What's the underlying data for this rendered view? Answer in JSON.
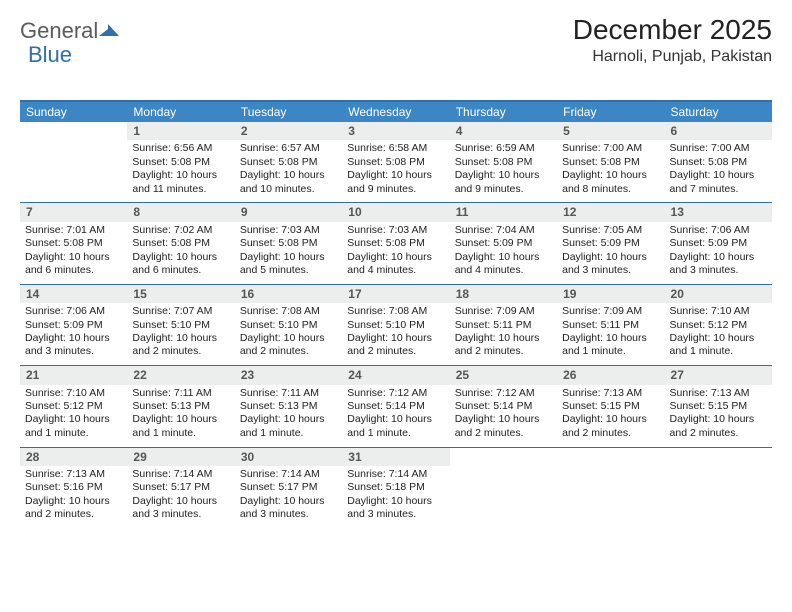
{
  "brand": {
    "part1": "General",
    "part2": "Blue"
  },
  "title": "December 2025",
  "location": "Harnoli, Punjab, Pakistan",
  "colors": {
    "header_bg": "#3d86c6",
    "rule": "#2f6fab",
    "daynum_bg": "#eceded",
    "text": "#222222",
    "logo_gray": "#5c5c5c",
    "logo_blue": "#2f6fab"
  },
  "daysOfWeek": [
    "Sunday",
    "Monday",
    "Tuesday",
    "Wednesday",
    "Thursday",
    "Friday",
    "Saturday"
  ],
  "weeks": [
    [
      {
        "n": "",
        "sr": "",
        "ss": "",
        "dl": ""
      },
      {
        "n": "1",
        "sr": "Sunrise: 6:56 AM",
        "ss": "Sunset: 5:08 PM",
        "dl": "Daylight: 10 hours and 11 minutes."
      },
      {
        "n": "2",
        "sr": "Sunrise: 6:57 AM",
        "ss": "Sunset: 5:08 PM",
        "dl": "Daylight: 10 hours and 10 minutes."
      },
      {
        "n": "3",
        "sr": "Sunrise: 6:58 AM",
        "ss": "Sunset: 5:08 PM",
        "dl": "Daylight: 10 hours and 9 minutes."
      },
      {
        "n": "4",
        "sr": "Sunrise: 6:59 AM",
        "ss": "Sunset: 5:08 PM",
        "dl": "Daylight: 10 hours and 9 minutes."
      },
      {
        "n": "5",
        "sr": "Sunrise: 7:00 AM",
        "ss": "Sunset: 5:08 PM",
        "dl": "Daylight: 10 hours and 8 minutes."
      },
      {
        "n": "6",
        "sr": "Sunrise: 7:00 AM",
        "ss": "Sunset: 5:08 PM",
        "dl": "Daylight: 10 hours and 7 minutes."
      }
    ],
    [
      {
        "n": "7",
        "sr": "Sunrise: 7:01 AM",
        "ss": "Sunset: 5:08 PM",
        "dl": "Daylight: 10 hours and 6 minutes."
      },
      {
        "n": "8",
        "sr": "Sunrise: 7:02 AM",
        "ss": "Sunset: 5:08 PM",
        "dl": "Daylight: 10 hours and 6 minutes."
      },
      {
        "n": "9",
        "sr": "Sunrise: 7:03 AM",
        "ss": "Sunset: 5:08 PM",
        "dl": "Daylight: 10 hours and 5 minutes."
      },
      {
        "n": "10",
        "sr": "Sunrise: 7:03 AM",
        "ss": "Sunset: 5:08 PM",
        "dl": "Daylight: 10 hours and 4 minutes."
      },
      {
        "n": "11",
        "sr": "Sunrise: 7:04 AM",
        "ss": "Sunset: 5:09 PM",
        "dl": "Daylight: 10 hours and 4 minutes."
      },
      {
        "n": "12",
        "sr": "Sunrise: 7:05 AM",
        "ss": "Sunset: 5:09 PM",
        "dl": "Daylight: 10 hours and 3 minutes."
      },
      {
        "n": "13",
        "sr": "Sunrise: 7:06 AM",
        "ss": "Sunset: 5:09 PM",
        "dl": "Daylight: 10 hours and 3 minutes."
      }
    ],
    [
      {
        "n": "14",
        "sr": "Sunrise: 7:06 AM",
        "ss": "Sunset: 5:09 PM",
        "dl": "Daylight: 10 hours and 3 minutes."
      },
      {
        "n": "15",
        "sr": "Sunrise: 7:07 AM",
        "ss": "Sunset: 5:10 PM",
        "dl": "Daylight: 10 hours and 2 minutes."
      },
      {
        "n": "16",
        "sr": "Sunrise: 7:08 AM",
        "ss": "Sunset: 5:10 PM",
        "dl": "Daylight: 10 hours and 2 minutes."
      },
      {
        "n": "17",
        "sr": "Sunrise: 7:08 AM",
        "ss": "Sunset: 5:10 PM",
        "dl": "Daylight: 10 hours and 2 minutes."
      },
      {
        "n": "18",
        "sr": "Sunrise: 7:09 AM",
        "ss": "Sunset: 5:11 PM",
        "dl": "Daylight: 10 hours and 2 minutes."
      },
      {
        "n": "19",
        "sr": "Sunrise: 7:09 AM",
        "ss": "Sunset: 5:11 PM",
        "dl": "Daylight: 10 hours and 1 minute."
      },
      {
        "n": "20",
        "sr": "Sunrise: 7:10 AM",
        "ss": "Sunset: 5:12 PM",
        "dl": "Daylight: 10 hours and 1 minute."
      }
    ],
    [
      {
        "n": "21",
        "sr": "Sunrise: 7:10 AM",
        "ss": "Sunset: 5:12 PM",
        "dl": "Daylight: 10 hours and 1 minute."
      },
      {
        "n": "22",
        "sr": "Sunrise: 7:11 AM",
        "ss": "Sunset: 5:13 PM",
        "dl": "Daylight: 10 hours and 1 minute."
      },
      {
        "n": "23",
        "sr": "Sunrise: 7:11 AM",
        "ss": "Sunset: 5:13 PM",
        "dl": "Daylight: 10 hours and 1 minute."
      },
      {
        "n": "24",
        "sr": "Sunrise: 7:12 AM",
        "ss": "Sunset: 5:14 PM",
        "dl": "Daylight: 10 hours and 1 minute."
      },
      {
        "n": "25",
        "sr": "Sunrise: 7:12 AM",
        "ss": "Sunset: 5:14 PM",
        "dl": "Daylight: 10 hours and 2 minutes."
      },
      {
        "n": "26",
        "sr": "Sunrise: 7:13 AM",
        "ss": "Sunset: 5:15 PM",
        "dl": "Daylight: 10 hours and 2 minutes."
      },
      {
        "n": "27",
        "sr": "Sunrise: 7:13 AM",
        "ss": "Sunset: 5:15 PM",
        "dl": "Daylight: 10 hours and 2 minutes."
      }
    ],
    [
      {
        "n": "28",
        "sr": "Sunrise: 7:13 AM",
        "ss": "Sunset: 5:16 PM",
        "dl": "Daylight: 10 hours and 2 minutes."
      },
      {
        "n": "29",
        "sr": "Sunrise: 7:14 AM",
        "ss": "Sunset: 5:17 PM",
        "dl": "Daylight: 10 hours and 3 minutes."
      },
      {
        "n": "30",
        "sr": "Sunrise: 7:14 AM",
        "ss": "Sunset: 5:17 PM",
        "dl": "Daylight: 10 hours and 3 minutes."
      },
      {
        "n": "31",
        "sr": "Sunrise: 7:14 AM",
        "ss": "Sunset: 5:18 PM",
        "dl": "Daylight: 10 hours and 3 minutes."
      },
      {
        "n": "",
        "sr": "",
        "ss": "",
        "dl": ""
      },
      {
        "n": "",
        "sr": "",
        "ss": "",
        "dl": ""
      },
      {
        "n": "",
        "sr": "",
        "ss": "",
        "dl": ""
      }
    ]
  ]
}
